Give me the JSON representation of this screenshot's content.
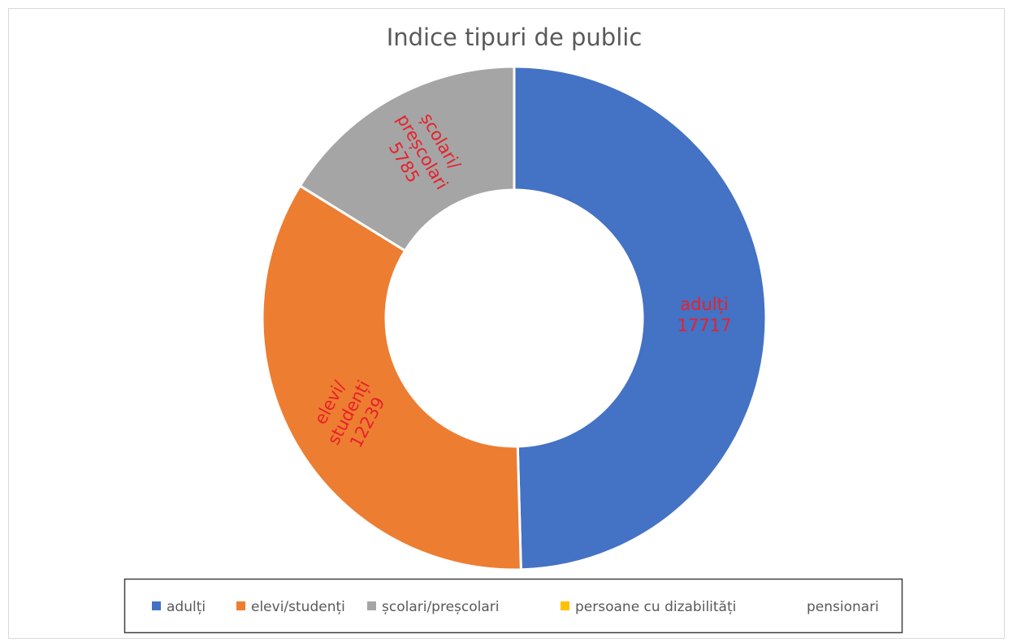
{
  "chart_data": {
    "type": "donut",
    "title": "Indice tipuri de public",
    "categories": [
      "adulți",
      "elevi/studenți",
      "școlari/preșcolari",
      "persoane cu dizabilități",
      "pensionari"
    ],
    "values": [
      17717,
      12239,
      5785,
      0,
      0
    ],
    "colors": [
      "#4472c4",
      "#ed7d31",
      "#a5a5a5",
      "#ffc000",
      "#ffffff"
    ],
    "label_color": "#e8202a",
    "legend": "bottom"
  }
}
